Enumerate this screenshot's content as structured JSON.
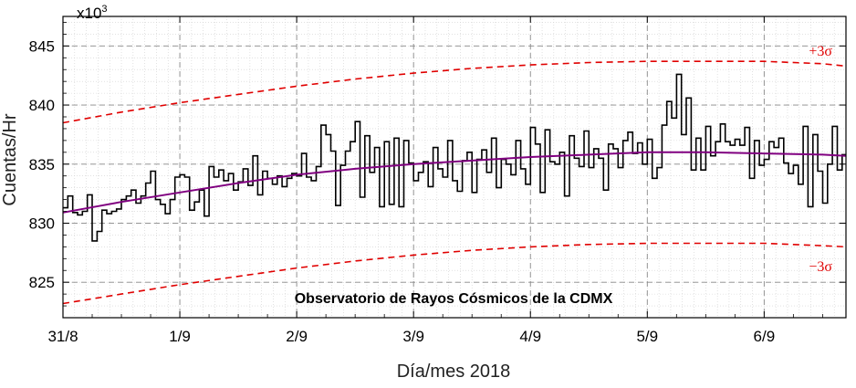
{
  "chart_data": {
    "type": "line",
    "xlabel": "Día/mes 2018",
    "ylabel": "Cuentas/Hr",
    "y_multiplier": "x10",
    "y_multiplier_exp": "3",
    "x_ticks": [
      "31/8",
      "1/9",
      "2/9",
      "3/9",
      "4/9",
      "5/9",
      "6/9"
    ],
    "x_tick_values": [
      0,
      1,
      2,
      3,
      4,
      5,
      6
    ],
    "xlim": [
      0,
      6.7
    ],
    "ylim": [
      822,
      847.5
    ],
    "y_ticks": [
      825,
      830,
      835,
      840,
      845
    ],
    "y_tick_labels": [
      "825",
      "830",
      "835",
      "840",
      "845"
    ],
    "grid": true,
    "annotation": "Observatorio de Rayos Cósmicos de la CDMX",
    "sigma_labels": {
      "upper": "+3σ",
      "lower": "−3σ"
    },
    "colors": {
      "data": "#000000",
      "fit": "#800080",
      "sigma": "#e00000",
      "grid": "#888888"
    },
    "series": [
      {
        "style": "step",
        "x_start": 0,
        "x_step": 0.04167,
        "values": [
          831.3,
          832.3,
          830.9,
          830.7,
          831.0,
          832.4,
          828.5,
          829.3,
          831.1,
          830.8,
          831.0,
          831.2,
          832.0,
          832.3,
          832.8,
          831.7,
          832.3,
          833.4,
          834.4,
          832.0,
          831.6,
          830.8,
          832.0,
          833.9,
          834.1,
          833.9,
          831.1,
          831.8,
          832.8,
          830.6,
          834.8,
          833.9,
          834.5,
          833.6,
          834.2,
          832.8,
          833.5,
          834.6,
          833.2,
          835.7,
          832.4,
          834.4,
          833.8,
          833.3,
          834.0,
          833.1,
          833.8,
          834.2,
          834.0,
          835.9,
          833.9,
          833.6,
          834.8,
          838.3,
          837.5,
          836.1,
          831.5,
          834.9,
          836.1,
          836.9,
          838.6,
          832.2,
          837.4,
          834.3,
          836.4,
          831.4,
          836.9,
          831.6,
          837.2,
          831.4,
          837.0,
          835.1,
          833.6,
          834.3,
          835.2,
          833.1,
          836.4,
          834.6,
          833.9,
          837.0,
          833.6,
          832.7,
          835.3,
          836.0,
          832.6,
          835.4,
          836.2,
          834.3,
          837.2,
          833.0,
          835.4,
          835.0,
          834.1,
          837.0,
          834.6,
          833.3,
          838.1,
          836.7,
          832.6,
          837.9,
          835.2,
          835.0,
          836.0,
          832.3,
          837.4,
          835.5,
          834.8,
          837.8,
          834.7,
          836.3,
          835.5,
          832.8,
          836.7,
          836.3,
          834.7,
          837.0,
          837.7,
          835.9,
          836.8,
          835.0,
          837.1,
          833.8,
          834.7,
          838.3,
          840.3,
          838.9,
          842.6,
          837.5,
          840.6,
          834.5,
          837.2,
          834.5,
          838.2,
          835.7,
          836.9,
          838.4,
          836.9,
          836.6,
          837.1,
          836.6,
          838.1,
          833.8,
          837.0,
          834.9,
          835.4,
          836.9,
          836.4,
          837.2,
          835.1,
          834.2,
          834.9,
          833.3,
          838.2,
          831.4,
          837.5,
          834.4,
          831.7,
          835.0,
          838.2,
          834.5,
          835.8
        ]
      },
      {
        "name": "fit",
        "style": "curve",
        "x": [
          0,
          0.5,
          1,
          1.5,
          2,
          2.5,
          3,
          3.5,
          4,
          4.5,
          5,
          5.5,
          6,
          6.5,
          6.7
        ],
        "values": [
          830.9,
          831.8,
          832.6,
          833.4,
          834.1,
          834.6,
          835.0,
          835.3,
          835.6,
          835.8,
          836.0,
          836.0,
          835.9,
          835.8,
          835.7
        ]
      },
      {
        "name": "+3σ",
        "style": "dashed",
        "x": [
          0,
          0.5,
          1,
          1.5,
          2,
          2.5,
          3,
          3.5,
          4,
          4.5,
          5,
          5.5,
          6,
          6.5,
          6.7
        ],
        "values": [
          838.5,
          839.4,
          840.2,
          840.9,
          841.6,
          842.2,
          842.7,
          843.1,
          843.4,
          843.6,
          843.7,
          843.7,
          843.7,
          843.5,
          843.3
        ]
      },
      {
        "name": "−3σ",
        "style": "dashed",
        "x": [
          0,
          0.5,
          1,
          1.5,
          2,
          2.5,
          3,
          3.5,
          4,
          4.5,
          5,
          5.5,
          6,
          6.5,
          6.7
        ],
        "values": [
          823.2,
          824.0,
          824.8,
          825.5,
          826.2,
          826.8,
          827.3,
          827.7,
          828.0,
          828.2,
          828.3,
          828.3,
          828.3,
          828.1,
          828.0
        ]
      }
    ]
  }
}
